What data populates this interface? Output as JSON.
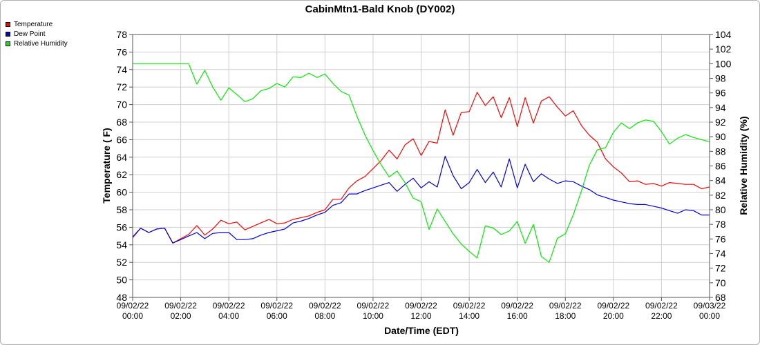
{
  "chart_data": {
    "type": "line",
    "title": "CabinMtn1-Bald Knob (DY002)",
    "xlabel": "Date/Time (EDT)",
    "ylabel": "Temperature ( F)",
    "y2label": "Relative Humidity (%)",
    "ylim": [
      48,
      78
    ],
    "y2lim": [
      68,
      104
    ],
    "xlim_hours": [
      0,
      24
    ],
    "yticks": [
      "48",
      "50",
      "52",
      "54",
      "56",
      "58",
      "60",
      "62",
      "64",
      "66",
      "68",
      "70",
      "72",
      "74",
      "76",
      "78"
    ],
    "y2ticks": [
      "68",
      "70",
      "72",
      "74",
      "76",
      "78",
      "80",
      "82",
      "84",
      "86",
      "88",
      "90",
      "92",
      "94",
      "96",
      "98",
      "100",
      "102",
      "104"
    ],
    "xticks": [
      {
        "date": "09/02/22",
        "time": "00:00"
      },
      {
        "date": "09/02/22",
        "time": "02:00"
      },
      {
        "date": "09/02/22",
        "time": "04:00"
      },
      {
        "date": "09/02/22",
        "time": "06:00"
      },
      {
        "date": "09/02/22",
        "time": "08:00"
      },
      {
        "date": "09/02/22",
        "time": "10:00"
      },
      {
        "date": "09/02/22",
        "time": "12:00"
      },
      {
        "date": "09/02/22",
        "time": "14:00"
      },
      {
        "date": "09/02/22",
        "time": "16:00"
      },
      {
        "date": "09/02/22",
        "time": "18:00"
      },
      {
        "date": "09/02/22",
        "time": "20:00"
      },
      {
        "date": "09/02/22",
        "time": "22:00"
      },
      {
        "date": "09/03/22",
        "time": "00:00"
      }
    ],
    "grid": true,
    "legend_placement": "top-left",
    "series": [
      {
        "name": "Temperature",
        "axis": "left",
        "color": "#ff0000",
        "x": [
          0,
          0.33,
          0.67,
          1,
          1.33,
          1.67,
          2,
          2.33,
          2.67,
          3,
          3.33,
          3.67,
          4,
          4.33,
          4.67,
          5,
          5.33,
          5.67,
          6,
          6.33,
          6.67,
          7,
          7.33,
          7.67,
          8,
          8.33,
          8.67,
          9,
          9.33,
          9.67,
          10,
          10.33,
          10.67,
          11,
          11.33,
          11.67,
          12,
          12.33,
          12.67,
          13,
          13.33,
          13.67,
          14,
          14.33,
          14.67,
          15,
          15.33,
          15.67,
          16,
          16.33,
          16.67,
          17,
          17.33,
          17.67,
          18,
          18.33,
          18.67,
          19,
          19.33,
          19.67,
          20,
          20.33,
          20.67,
          21,
          21.33,
          21.67,
          22,
          22.33,
          22.67,
          23,
          23.33,
          23.67,
          24
        ],
        "values": [
          54.8,
          55.9,
          55.4,
          55.8,
          55.9,
          54.2,
          54.7,
          55.2,
          56.2,
          55.1,
          55.8,
          56.8,
          56.4,
          56.6,
          55.7,
          56.1,
          56.5,
          56.9,
          56.4,
          56.5,
          56.9,
          57.1,
          57.3,
          57.7,
          58.0,
          59.2,
          59.2,
          60.5,
          61.3,
          61.8,
          62.7,
          63.6,
          64.8,
          63.8,
          65.4,
          66.1,
          64.2,
          65.8,
          65.6,
          69.4,
          66.5,
          69.1,
          69.2,
          71.4,
          69.9,
          70.9,
          68.5,
          70.8,
          67.5,
          70.8,
          67.9,
          70.4,
          70.9,
          69.7,
          68.7,
          69.3,
          67.6,
          66.5,
          65.7,
          63.8,
          62.9,
          62.2,
          61.2,
          61.3,
          60.9,
          61.0,
          60.7,
          61.1,
          61.0,
          60.9,
          60.9,
          60.4,
          60.6
        ]
      },
      {
        "name": "Dew Point",
        "axis": "left",
        "color": "#0000dd",
        "x": [
          0,
          0.33,
          0.67,
          1,
          1.33,
          1.67,
          2,
          2.33,
          2.67,
          3,
          3.33,
          3.67,
          4,
          4.33,
          4.67,
          5,
          5.33,
          5.67,
          6,
          6.33,
          6.67,
          7,
          7.33,
          7.67,
          8,
          8.33,
          8.67,
          9,
          9.33,
          9.67,
          10,
          10.33,
          10.67,
          11,
          11.33,
          11.67,
          12,
          12.33,
          12.67,
          13,
          13.33,
          13.67,
          14,
          14.33,
          14.67,
          15,
          15.33,
          15.67,
          16,
          16.33,
          16.67,
          17,
          17.33,
          17.67,
          18,
          18.33,
          18.67,
          19,
          19.33,
          19.67,
          20,
          20.33,
          20.67,
          21,
          21.33,
          21.67,
          22,
          22.33,
          22.67,
          23,
          23.33,
          23.67,
          24
        ],
        "values": [
          54.9,
          55.9,
          55.4,
          55.8,
          55.9,
          54.2,
          54.6,
          55.0,
          55.4,
          54.7,
          55.3,
          55.4,
          55.4,
          54.6,
          54.6,
          54.7,
          55.1,
          55.4,
          55.6,
          55.8,
          56.5,
          56.7,
          57.0,
          57.4,
          57.7,
          58.5,
          58.8,
          59.8,
          59.8,
          60.2,
          60.5,
          60.8,
          61.1,
          60.1,
          60.9,
          61.6,
          60.5,
          61.2,
          60.6,
          64.1,
          61.9,
          60.4,
          61.1,
          62.6,
          61.1,
          62.3,
          60.6,
          63.8,
          60.5,
          63.2,
          61.2,
          62.1,
          61.5,
          61.0,
          61.3,
          61.2,
          60.7,
          60.3,
          59.7,
          59.4,
          59.1,
          58.9,
          58.7,
          58.6,
          58.6,
          58.4,
          58.2,
          57.9,
          57.6,
          58.0,
          57.9,
          57.4,
          57.4
        ]
      },
      {
        "name": "Relative Humidity",
        "axis": "right",
        "color": "#00ee00",
        "x": [
          0,
          0.33,
          0.67,
          1,
          1.33,
          1.67,
          2,
          2.33,
          2.67,
          3,
          3.33,
          3.67,
          4,
          4.33,
          4.67,
          5,
          5.33,
          5.67,
          6,
          6.33,
          6.67,
          7,
          7.33,
          7.67,
          8,
          8.33,
          8.67,
          9,
          9.33,
          9.67,
          10,
          10.33,
          10.67,
          11,
          11.33,
          11.67,
          12,
          12.33,
          12.67,
          13,
          13.33,
          13.67,
          14,
          14.33,
          14.67,
          15,
          15.33,
          15.67,
          16,
          16.33,
          16.67,
          17,
          17.33,
          17.67,
          18,
          18.33,
          18.67,
          19,
          19.33,
          19.67,
          20,
          20.33,
          20.67,
          21,
          21.33,
          21.67,
          22,
          22.33,
          22.67,
          23,
          23.33,
          23.67,
          24
        ],
        "values": [
          100,
          100,
          100,
          100,
          100,
          100,
          100,
          100,
          97.2,
          99.1,
          96.8,
          95.0,
          96.7,
          95.8,
          94.8,
          95.2,
          96.3,
          96.6,
          97.3,
          96.8,
          98.2,
          98.1,
          98.7,
          98.1,
          98.6,
          97.3,
          96.2,
          95.7,
          92.8,
          90.2,
          88.1,
          86.2,
          84.5,
          85.3,
          83.7,
          81.6,
          81.1,
          77.3,
          80.1,
          78.4,
          76.7,
          75.3,
          74.3,
          73.4,
          77.8,
          77.5,
          76.6,
          77.1,
          78.4,
          75.4,
          78.0,
          73.6,
          72.8,
          76.1,
          76.7,
          79.3,
          82.6,
          86.1,
          88.2,
          88.5,
          90.6,
          91.9,
          91.1,
          91.9,
          92.3,
          92.1,
          90.7,
          89.0,
          89.8,
          90.3,
          89.9,
          89.6,
          89.3
        ]
      }
    ]
  },
  "legend": {
    "items": [
      {
        "label": "Temperature",
        "color": "#ff0000"
      },
      {
        "label": "Dew Point",
        "color": "#0000dd"
      },
      {
        "label": "Relative Humidity",
        "color": "#00ee00"
      }
    ]
  }
}
